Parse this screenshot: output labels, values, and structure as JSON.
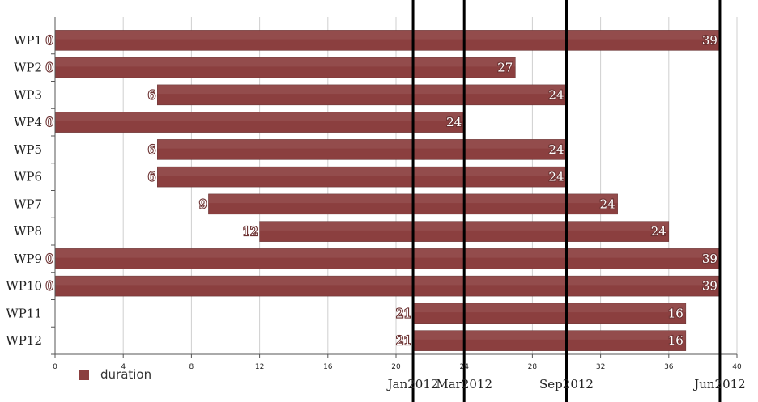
{
  "chart_data": {
    "type": "bar",
    "orientation": "horizontal",
    "stacked": true,
    "categories": [
      "WP1",
      "WP2",
      "WP3",
      "WP4",
      "WP5",
      "WP6",
      "WP7",
      "WP8",
      "WP9",
      "WP10",
      "WP11",
      "WP12"
    ],
    "starts": [
      0,
      0,
      6,
      0,
      6,
      6,
      9,
      12,
      0,
      0,
      21,
      21
    ],
    "series": [
      {
        "name": "duration",
        "values": [
          39,
          27,
          24,
          24,
          24,
          24,
          24,
          24,
          39,
          39,
          16,
          16
        ],
        "color": "#8b3f3f"
      }
    ],
    "start_labels": [
      "0",
      "0",
      "6",
      "0",
      "6",
      "6",
      "9",
      "12",
      "0",
      "0",
      "21",
      "21"
    ],
    "end_labels": [
      "39",
      "27",
      "24",
      "24",
      "24",
      "24",
      "24",
      "24",
      "39",
      "39",
      "16",
      "16"
    ],
    "xlim": [
      0,
      40
    ],
    "xticks": [
      0,
      4,
      8,
      12,
      16,
      20,
      24,
      28,
      32,
      36,
      40
    ],
    "grid": true,
    "milestones": [
      {
        "label": "Jan2012",
        "x": 21
      },
      {
        "label": "Mar2012",
        "x": 24
      },
      {
        "label": "Sep2012",
        "x": 30
      },
      {
        "label": "Jun2012",
        "x": 39
      }
    ],
    "legend": {
      "position": "bottom-left",
      "entries": [
        "duration"
      ]
    }
  },
  "legend": {
    "label": "duration",
    "color": "#8b3f3f"
  }
}
